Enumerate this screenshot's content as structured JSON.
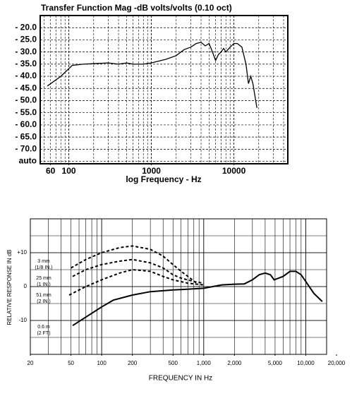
{
  "chart_data": [
    {
      "type": "line",
      "title": "Transfer Function Mag -dB volts/volts (0.10 oct)",
      "x_label": "log Frequency - Hz",
      "log_x": true,
      "grid": true,
      "xlim": [
        45,
        45000
      ],
      "ylim": [
        -76,
        -15
      ],
      "xticks": [
        60,
        100,
        1000,
        10000
      ],
      "yticks": [
        {
          "value": -20,
          "label": "- 20.0"
        },
        {
          "value": -25,
          "label": "- 25.0"
        },
        {
          "value": -30,
          "label": "- 30.0"
        },
        {
          "value": -35,
          "label": "- 35.0"
        },
        {
          "value": -40,
          "label": "- 40.0"
        },
        {
          "value": -45,
          "label": "- 45.0"
        },
        {
          "value": -50,
          "label": "- 50.0"
        },
        {
          "value": -55,
          "label": "- 55.0"
        },
        {
          "value": -60,
          "label": "- 60.0"
        },
        {
          "value": -65,
          "label": "- 65.0"
        },
        {
          "value": -70,
          "label": "- 70.0"
        },
        {
          "value": -75,
          "label": "auto"
        }
      ],
      "series": [
        {
          "color": "#000000",
          "x": [
            55,
            80,
            110,
            150,
            300,
            400,
            500,
            600,
            800,
            1000,
            1500,
            2000,
            2500,
            3000,
            3500,
            4000,
            4500,
            5000,
            5500,
            6000,
            6500,
            7000,
            7500,
            8000,
            9000,
            10000,
            11000,
            12500,
            14000,
            15000,
            16000,
            17000,
            19000
          ],
          "values": [
            -44,
            -40,
            -35.5,
            -35,
            -34.5,
            -35,
            -34.5,
            -35,
            -35,
            -34.5,
            -33,
            -31.5,
            -29,
            -28,
            -26.5,
            -26,
            -27.5,
            -26.5,
            -30,
            -33.5,
            -31,
            -30,
            -28.5,
            -30,
            -28,
            -26.5,
            -26.5,
            -28,
            -35,
            -43,
            -40,
            -43,
            -53
          ]
        }
      ]
    },
    {
      "type": "line",
      "x_label": "FREQUENCY IN Hz",
      "y_label": "RELATIVE RESPONSE IN dB",
      "log_x": true,
      "grid": true,
      "xlim": [
        20,
        16000
      ],
      "ylim": [
        -20,
        20
      ],
      "xticks": [
        20,
        50,
        100,
        200,
        500,
        {
          "value": 1000,
          "label": "1,000"
        },
        {
          "value": 2000,
          "label": "2,000"
        },
        {
          "value": 5000,
          "label": "5,000"
        },
        {
          "value": 10000,
          "label": "10,000"
        },
        {
          "value": 20000,
          "label": "20,000"
        }
      ],
      "yticks": [
        {
          "value": 10,
          "label": "+10"
        },
        0,
        -10
      ],
      "series": [
        {
          "name": "3 mm",
          "subname": "(1/8 IN.)",
          "color": "#000000",
          "dash": true,
          "x": [
            50,
            70,
            100,
            150,
            200,
            300,
            400,
            500,
            600,
            700,
            850
          ],
          "values": [
            5.5,
            8,
            10,
            11.5,
            12,
            11,
            9,
            6.5,
            4.5,
            3,
            1
          ]
        },
        {
          "name": "25 mm",
          "subname": "(1 IN.)",
          "color": "#000000",
          "dash": true,
          "x": [
            52,
            70,
            100,
            150,
            200,
            300,
            400,
            500,
            600,
            800,
            1000
          ],
          "values": [
            3,
            5,
            6.5,
            7.5,
            8,
            7,
            5.5,
            3.5,
            2.5,
            1.5,
            1
          ]
        },
        {
          "name": "51 mm",
          "subname": "(2 IN.)",
          "color": "#000000",
          "dash": true,
          "x": [
            48,
            70,
            100,
            150,
            200,
            300,
            400,
            500,
            700,
            1000
          ],
          "values": [
            -2.5,
            0,
            2,
            4,
            5,
            4.5,
            3,
            2,
            1,
            0.5
          ]
        },
        {
          "name": "0.6 m",
          "subname": "(2 FT)",
          "color": "#000000",
          "dash": false,
          "x": [
            52,
            70,
            100,
            130,
            200,
            300,
            500,
            1000,
            1500,
            2000,
            2500,
            3000,
            3500,
            4000,
            4500,
            4900,
            6000,
            7000,
            8000,
            9000,
            10000,
            12000,
            14500
          ],
          "values": [
            -11.5,
            -9,
            -6,
            -4,
            -2.5,
            -1.5,
            -1,
            -0.5,
            0.5,
            0.7,
            0.8,
            2,
            3.5,
            4,
            3.5,
            2,
            3,
            4.5,
            4.5,
            3.5,
            1.5,
            -2,
            -4.4
          ]
        }
      ]
    }
  ]
}
